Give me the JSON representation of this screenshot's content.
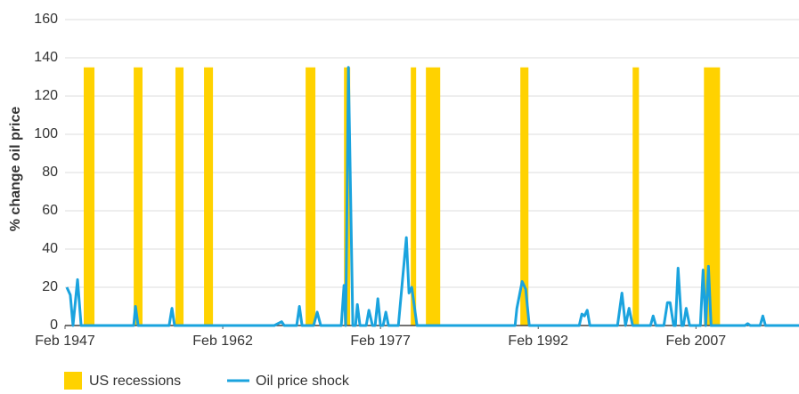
{
  "chart_data": {
    "type": "line",
    "y_label": "% change oil price",
    "ylim": [
      0,
      160
    ],
    "yticks": [
      0,
      20,
      40,
      60,
      80,
      100,
      120,
      140,
      160
    ],
    "xlim": [
      1947.1,
      2016.9
    ],
    "xticks": [
      {
        "value": 1947.1,
        "label": "Feb 1947"
      },
      {
        "value": 1962.1,
        "label": "Feb 1962"
      },
      {
        "value": 1977.1,
        "label": "Feb 1977"
      },
      {
        "value": 1992.1,
        "label": "Feb 1992"
      },
      {
        "value": 2007.1,
        "label": "Feb 2007"
      }
    ],
    "grid": true,
    "legend": "bottom",
    "recessions": {
      "name": "US recessions",
      "color": "#FFD200",
      "value": 135,
      "periods": [
        [
          1948.88,
          1949.9
        ],
        [
          1953.63,
          1954.47
        ],
        [
          1957.6,
          1958.37
        ],
        [
          1960.32,
          1961.17
        ],
        [
          1969.98,
          1970.91
        ],
        [
          1973.63,
          1974.22
        ],
        [
          1979.98,
          1980.49
        ],
        [
          1981.42,
          1982.78
        ],
        [
          1990.4,
          1991.17
        ],
        [
          2001.08,
          2001.68
        ],
        [
          2007.86,
          2009.39
        ]
      ]
    },
    "series": [
      {
        "name": "Oil price shock",
        "color": "#1AA3DE",
        "x": [
          1947.27,
          1947.6,
          1947.86,
          1948.29,
          1948.63,
          1953.63,
          1953.8,
          1954.05,
          1957.0,
          1957.27,
          1957.52,
          1967.0,
          1967.35,
          1967.7,
          1967.95,
          1969.13,
          1969.39,
          1969.64,
          1970.74,
          1971.08,
          1971.42,
          1973.37,
          1973.63,
          1973.79,
          1974.05,
          1974.47,
          1974.73,
          1974.9,
          1975.15,
          1975.74,
          1976.0,
          1976.34,
          1976.59,
          1976.85,
          1977.1,
          1977.35,
          1977.61,
          1977.86,
          1978.8,
          1979.56,
          1979.81,
          1980.07,
          1980.57,
          1989.9,
          1990.07,
          1990.57,
          1990.91,
          1991.25,
          1996.0,
          1996.25,
          1996.5,
          1996.76,
          1997.01,
          1999.64,
          2000.06,
          2000.4,
          2000.74,
          2001.08,
          2002.78,
          2003.03,
          2003.29,
          2004.05,
          2004.39,
          2004.64,
          2004.98,
          2005.15,
          2005.4,
          2005.74,
          2005.91,
          2006.17,
          2006.5,
          2007.52,
          2007.78,
          2008.03,
          2008.29,
          2008.54,
          2011.76,
          2012.02,
          2012.27,
          2013.2,
          2013.46,
          2013.71,
          2016.9
        ],
        "values": [
          20,
          16,
          0,
          24,
          0,
          0,
          10,
          0,
          0,
          9,
          0,
          0,
          1,
          2,
          0,
          0,
          10,
          0,
          0,
          7,
          0,
          0,
          21,
          0,
          135,
          0,
          0,
          11,
          0,
          0,
          8,
          0,
          0,
          14,
          0,
          0,
          7,
          0,
          0,
          46,
          17,
          20,
          0,
          0,
          9,
          23,
          19,
          0,
          0,
          6,
          5,
          8,
          0,
          0,
          17,
          0,
          9,
          0,
          0,
          5,
          0,
          0,
          12,
          12,
          0,
          0,
          30,
          0,
          0,
          9,
          0,
          0,
          29,
          0,
          31,
          0,
          0,
          1,
          0,
          0,
          5,
          0,
          0
        ]
      }
    ]
  }
}
